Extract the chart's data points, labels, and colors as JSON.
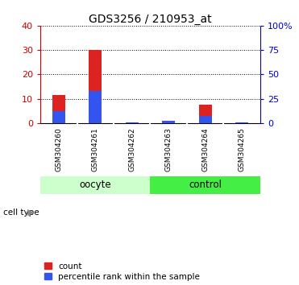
{
  "title": "GDS3256 / 210953_at",
  "samples": [
    "GSM304260",
    "GSM304261",
    "GSM304262",
    "GSM304263",
    "GSM304264",
    "GSM304265"
  ],
  "count_values": [
    11.5,
    30.0,
    0.15,
    0.15,
    7.5,
    0.15
  ],
  "percentile_values": [
    12.5,
    32.5,
    0.5,
    2.5,
    7.5,
    0.5
  ],
  "groups": [
    {
      "label": "oocyte",
      "indices": [
        0,
        1,
        2
      ],
      "color_light": "#ccffcc",
      "color_dark": "#55dd55"
    },
    {
      "label": "control",
      "indices": [
        3,
        4,
        5
      ],
      "color_light": "#44ee44",
      "color_dark": "#44ee44"
    }
  ],
  "left_ylim": [
    0,
    40
  ],
  "right_ylim": [
    0,
    100
  ],
  "left_yticks": [
    0,
    10,
    20,
    30,
    40
  ],
  "right_yticks": [
    0,
    25,
    50,
    75,
    100
  ],
  "right_yticklabels": [
    "0",
    "25",
    "50",
    "75",
    "100%"
  ],
  "left_color": "#cc0000",
  "right_color": "#0000cc",
  "bar_color_red": "#dd2222",
  "bar_color_blue": "#3355ee",
  "bg_color_oocyte": "#ccffcc",
  "bg_color_control": "#44ee44",
  "tick_bg": "#cccccc",
  "legend_count": "count",
  "legend_pct": "percentile rank within the sample",
  "cell_type_label": "cell type"
}
